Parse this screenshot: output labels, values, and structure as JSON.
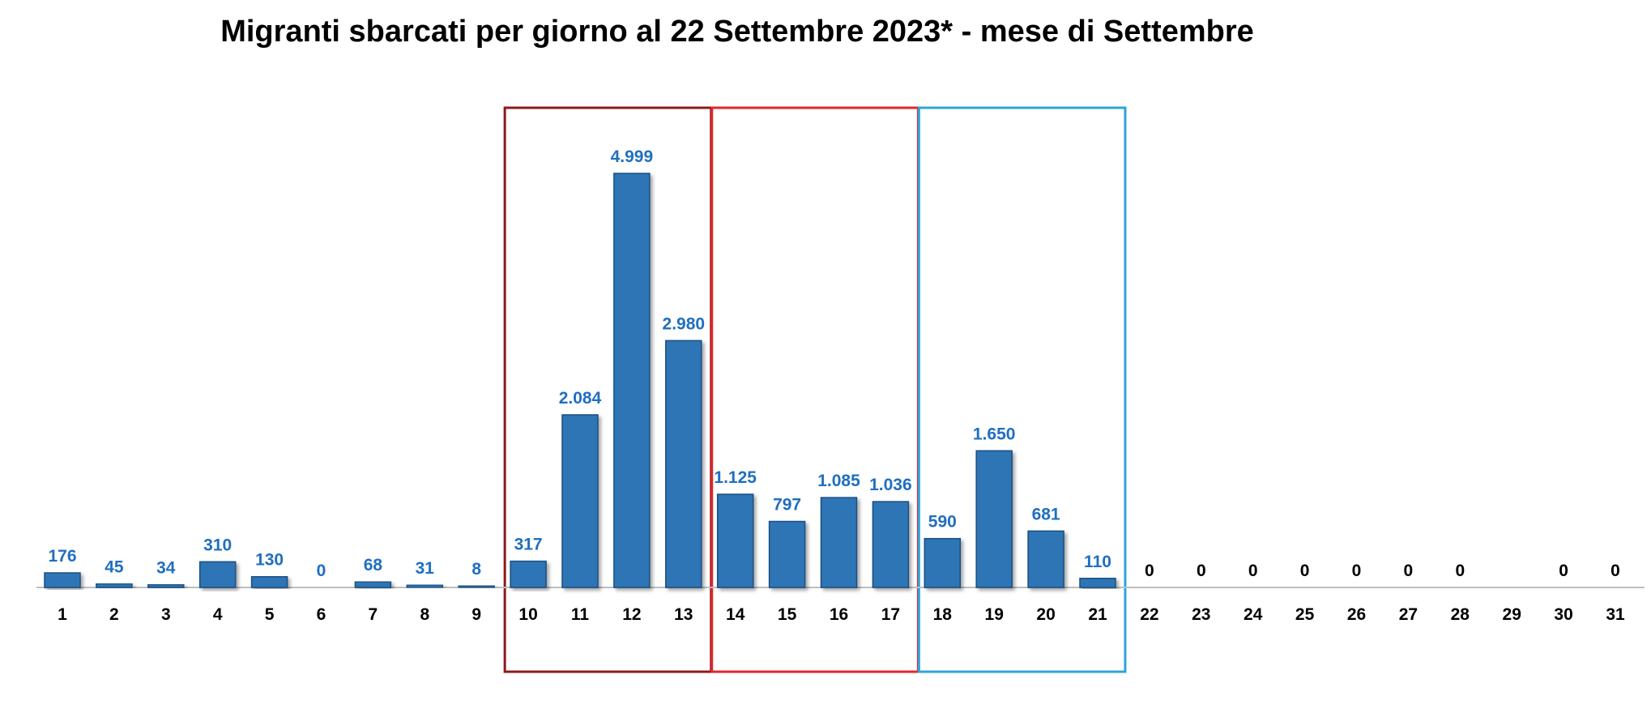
{
  "chart_data": {
    "type": "bar",
    "title": "Migranti sbarcati per giorno al 22 Settembre 2023* - mese di Settembre",
    "xlabel": "",
    "ylabel": "",
    "ylim": [
      0,
      5300
    ],
    "grid": false,
    "categories": [
      "1",
      "2",
      "3",
      "4",
      "5",
      "6",
      "7",
      "8",
      "9",
      "10",
      "11",
      "12",
      "13",
      "14",
      "15",
      "16",
      "17",
      "18",
      "19",
      "20",
      "21",
      "22",
      "23",
      "24",
      "25",
      "26",
      "27",
      "28",
      "29",
      "30",
      "31"
    ],
    "values": [
      176,
      45,
      34,
      310,
      130,
      0,
      68,
      31,
      8,
      317,
      2084,
      4999,
      2980,
      1125,
      797,
      1085,
      1036,
      590,
      1650,
      681,
      110,
      0,
      0,
      0,
      0,
      0,
      0,
      0,
      null,
      0,
      0
    ],
    "data_labels": [
      "176",
      "45",
      "34",
      "310",
      "130",
      "0",
      "68",
      "31",
      "8",
      "317",
      "2.084",
      "4.999",
      "2.980",
      "1.125",
      "797",
      "1.085",
      "1.036",
      "590",
      "1.650",
      "681",
      "110",
      "0",
      "0",
      "0",
      "0",
      "0",
      "0",
      "0",
      "",
      "0",
      "0"
    ],
    "bar_color": "#2E75B6",
    "label_color_blue": "#1F6FC0",
    "label_color_black": "#000000",
    "highlight_groups": [
      {
        "from": "10",
        "to": "13",
        "color": "#8B1A1A"
      },
      {
        "from": "14",
        "to": "17",
        "color": "#E0272B"
      },
      {
        "from": "18",
        "to": "21",
        "color": "#2EA3DD"
      }
    ]
  }
}
